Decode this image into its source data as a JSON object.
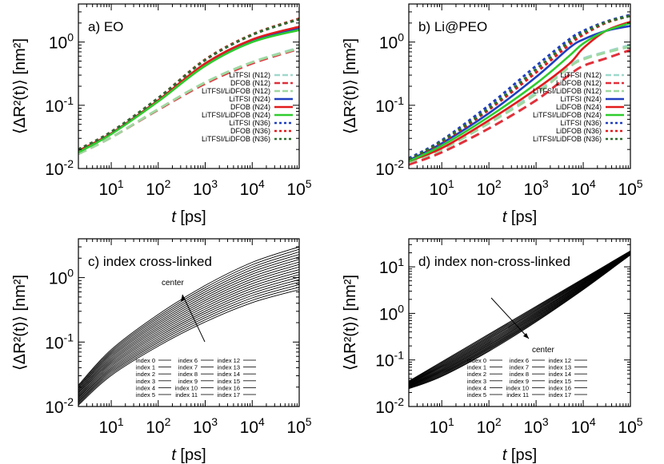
{
  "figure": {
    "x_axis_label": {
      "var": "t",
      "unit": " [ps]"
    },
    "y_axis_label": "⟨ΔR²(t)⟩ [nm²]"
  },
  "chart_data": [
    {
      "id": "a",
      "type": "line",
      "title": "a) EO",
      "xscale": "log",
      "yscale": "log",
      "xlim": [
        2,
        100000
      ],
      "ylim": [
        0.01,
        4
      ],
      "xticks": [
        10,
        100,
        1000,
        10000,
        100000
      ],
      "yticks": [
        0.01,
        0.1,
        1
      ],
      "legend_position": "right",
      "series": [
        {
          "name": "LiTFSI (N12)",
          "color": "#9fd8cc",
          "dash": "dashed",
          "x": [
            2,
            10,
            100,
            1000,
            10000,
            100000
          ],
          "y": [
            0.017,
            0.031,
            0.085,
            0.23,
            0.48,
            0.82
          ]
        },
        {
          "name": "DFOB (N12)",
          "color": "#e0303a",
          "dash": "dashed",
          "x": [
            2,
            10,
            100,
            1000,
            10000,
            100000
          ],
          "y": [
            0.017,
            0.031,
            0.085,
            0.22,
            0.46,
            0.78
          ]
        },
        {
          "name": "LiTFSI/LiDFOB (N12)",
          "color": "#9fd8a0",
          "dash": "dashed",
          "x": [
            2,
            10,
            100,
            1000,
            10000,
            100000
          ],
          "y": [
            0.017,
            0.031,
            0.087,
            0.23,
            0.48,
            0.8
          ]
        },
        {
          "name": "LiTFSI (N24)",
          "color": "#1f3fbf",
          "dash": "solid",
          "x": [
            2,
            10,
            100,
            1000,
            10000,
            100000
          ],
          "y": [
            0.019,
            0.036,
            0.12,
            0.45,
            1.05,
            1.65
          ]
        },
        {
          "name": "DFOB (N24)",
          "color": "#e31a1c",
          "dash": "solid",
          "x": [
            2,
            10,
            100,
            1000,
            10000,
            100000
          ],
          "y": [
            0.019,
            0.036,
            0.12,
            0.46,
            1.1,
            1.75
          ]
        },
        {
          "name": "LiTFSI/LiDFOB (N24)",
          "color": "#2ecc2e",
          "dash": "solid",
          "x": [
            2,
            10,
            100,
            1000,
            10000,
            100000
          ],
          "y": [
            0.018,
            0.035,
            0.115,
            0.42,
            1.0,
            1.55
          ]
        },
        {
          "name": "LiTFSI (N36)",
          "color": "#1f3fbf",
          "dash": "dotted",
          "x": [
            2,
            10,
            100,
            1000,
            10000,
            100000
          ],
          "y": [
            0.02,
            0.038,
            0.13,
            0.52,
            1.3,
            2.3
          ]
        },
        {
          "name": "DFOB (N36)",
          "color": "#e31a1c",
          "dash": "dotted",
          "x": [
            2,
            10,
            100,
            1000,
            10000,
            100000
          ],
          "y": [
            0.02,
            0.038,
            0.13,
            0.53,
            1.32,
            2.35
          ]
        },
        {
          "name": "LiTFSI/LiDFOB (N36)",
          "color": "#2e6b2e",
          "dash": "dotted",
          "x": [
            2,
            10,
            100,
            1000,
            10000,
            100000
          ],
          "y": [
            0.02,
            0.038,
            0.13,
            0.52,
            1.3,
            2.3
          ]
        }
      ]
    },
    {
      "id": "b",
      "type": "line",
      "title": "b) Li@PEO",
      "xscale": "log",
      "yscale": "log",
      "xlim": [
        2,
        100000
      ],
      "ylim": [
        0.01,
        4
      ],
      "xticks": [
        10,
        100,
        1000,
        10000,
        100000
      ],
      "yticks": [
        0.01,
        0.1,
        1
      ],
      "legend_position": "right",
      "series": [
        {
          "name": "LiTFSI (N12)",
          "color": "#9fd8cc",
          "dash": "dashed",
          "x": [
            2,
            10,
            100,
            1000,
            5000,
            10000,
            30000,
            100000
          ],
          "y": [
            0.013,
            0.021,
            0.055,
            0.16,
            0.42,
            0.55,
            0.7,
            0.9
          ]
        },
        {
          "name": "LiDFOB (N12)",
          "color": "#e0303a",
          "dash": "dashed",
          "x": [
            2,
            10,
            100,
            1000,
            5000,
            10000,
            30000,
            100000
          ],
          "y": [
            0.0115,
            0.018,
            0.043,
            0.12,
            0.3,
            0.42,
            0.55,
            0.75
          ]
        },
        {
          "name": "LiTFSI/LiDFOB (N12)",
          "color": "#9fd8a0",
          "dash": "dashed",
          "x": [
            2,
            10,
            100,
            1000,
            5000,
            10000,
            30000,
            100000
          ],
          "y": [
            0.0125,
            0.02,
            0.052,
            0.15,
            0.4,
            0.53,
            0.68,
            0.85
          ]
        },
        {
          "name": "LiTFSI (N24)",
          "color": "#1f3fbf",
          "dash": "solid",
          "x": [
            2,
            10,
            100,
            1000,
            5000,
            10000,
            30000,
            100000
          ],
          "y": [
            0.0135,
            0.025,
            0.075,
            0.28,
            0.8,
            1.1,
            1.5,
            1.8
          ]
        },
        {
          "name": "LiDFOB (N24)",
          "color": "#e31a1c",
          "dash": "solid",
          "x": [
            2,
            10,
            100,
            1000,
            5000,
            10000,
            30000,
            100000
          ],
          "y": [
            0.013,
            0.021,
            0.058,
            0.18,
            0.45,
            0.8,
            1.5,
            2.1
          ]
        },
        {
          "name": "LiTFSI/LiDFOB (N24)",
          "color": "#2ecc2e",
          "dash": "solid",
          "x": [
            2,
            10,
            100,
            1000,
            5000,
            10000,
            30000,
            100000
          ],
          "y": [
            0.013,
            0.023,
            0.066,
            0.22,
            0.6,
            0.95,
            1.5,
            2.0
          ]
        },
        {
          "name": "LiTFSI (N36)",
          "color": "#1f3fbf",
          "dash": "dotted",
          "x": [
            2,
            10,
            100,
            1000,
            5000,
            10000,
            30000,
            100000
          ],
          "y": [
            0.0145,
            0.028,
            0.1,
            0.42,
            1.1,
            1.5,
            2.1,
            2.7
          ]
        },
        {
          "name": "LiDFOB (N36)",
          "color": "#e31a1c",
          "dash": "dotted",
          "x": [
            2,
            10,
            100,
            1000,
            5000,
            10000,
            30000,
            100000
          ],
          "y": [
            0.014,
            0.026,
            0.085,
            0.33,
            0.9,
            1.3,
            2.0,
            2.6
          ]
        },
        {
          "name": "LiTFSI/LiDFOB (N36)",
          "color": "#2e6b2e",
          "dash": "dotted",
          "x": [
            2,
            10,
            100,
            1000,
            5000,
            10000,
            30000,
            100000
          ],
          "y": [
            0.014,
            0.027,
            0.09,
            0.37,
            1.0,
            1.4,
            2.05,
            2.6
          ]
        }
      ]
    },
    {
      "id": "c",
      "type": "line",
      "title": "c) index cross-linked",
      "xscale": "log",
      "yscale": "log",
      "xlim": [
        2,
        100000
      ],
      "ylim": [
        0.01,
        4
      ],
      "xticks": [
        10,
        100,
        1000,
        10000,
        100000
      ],
      "yticks": [
        0.01,
        0.1,
        1
      ],
      "legend_position": "bottom-right",
      "annotation": "center",
      "series_color": "#000000",
      "series_names": [
        "index 0",
        "index 1",
        "index 2",
        "index 3",
        "index 4",
        "index 5",
        "index 6",
        "index 7",
        "index 8",
        "index 9",
        "index 10",
        "index 11",
        "index 12",
        "index 13",
        "index 14",
        "index 15",
        "index 16",
        "index 17"
      ],
      "series_start": {
        "x": 2,
        "y_first": 0.0215,
        "y_last": 0.0105
      },
      "series_end": {
        "x": 100000,
        "y_first": 3.0,
        "y_last": 0.65
      }
    },
    {
      "id": "d",
      "type": "line",
      "title": "d) index non-cross-linked",
      "xscale": "log",
      "yscale": "log",
      "xlim": [
        2,
        100000
      ],
      "ylim": [
        0.01,
        40
      ],
      "xticks": [
        10,
        100,
        1000,
        10000,
        100000
      ],
      "yticks": [
        0.01,
        0.1,
        1,
        10
      ],
      "legend_position": "bottom-right",
      "annotation": "center",
      "series_color": "#000000",
      "series_names": [
        "index 0",
        "index 1",
        "index 2",
        "index 3",
        "index 4",
        "index 5",
        "index 6",
        "index 7",
        "index 8",
        "index 9",
        "index 10",
        "index 11",
        "index 12",
        "index 13",
        "index 14",
        "index 15",
        "index 16",
        "index 17"
      ],
      "series_start": {
        "x": 2,
        "y_first": 0.035,
        "y_last": 0.024
      },
      "series_end": {
        "x": 100000,
        "y_first": 22,
        "y_last": 18
      }
    }
  ]
}
